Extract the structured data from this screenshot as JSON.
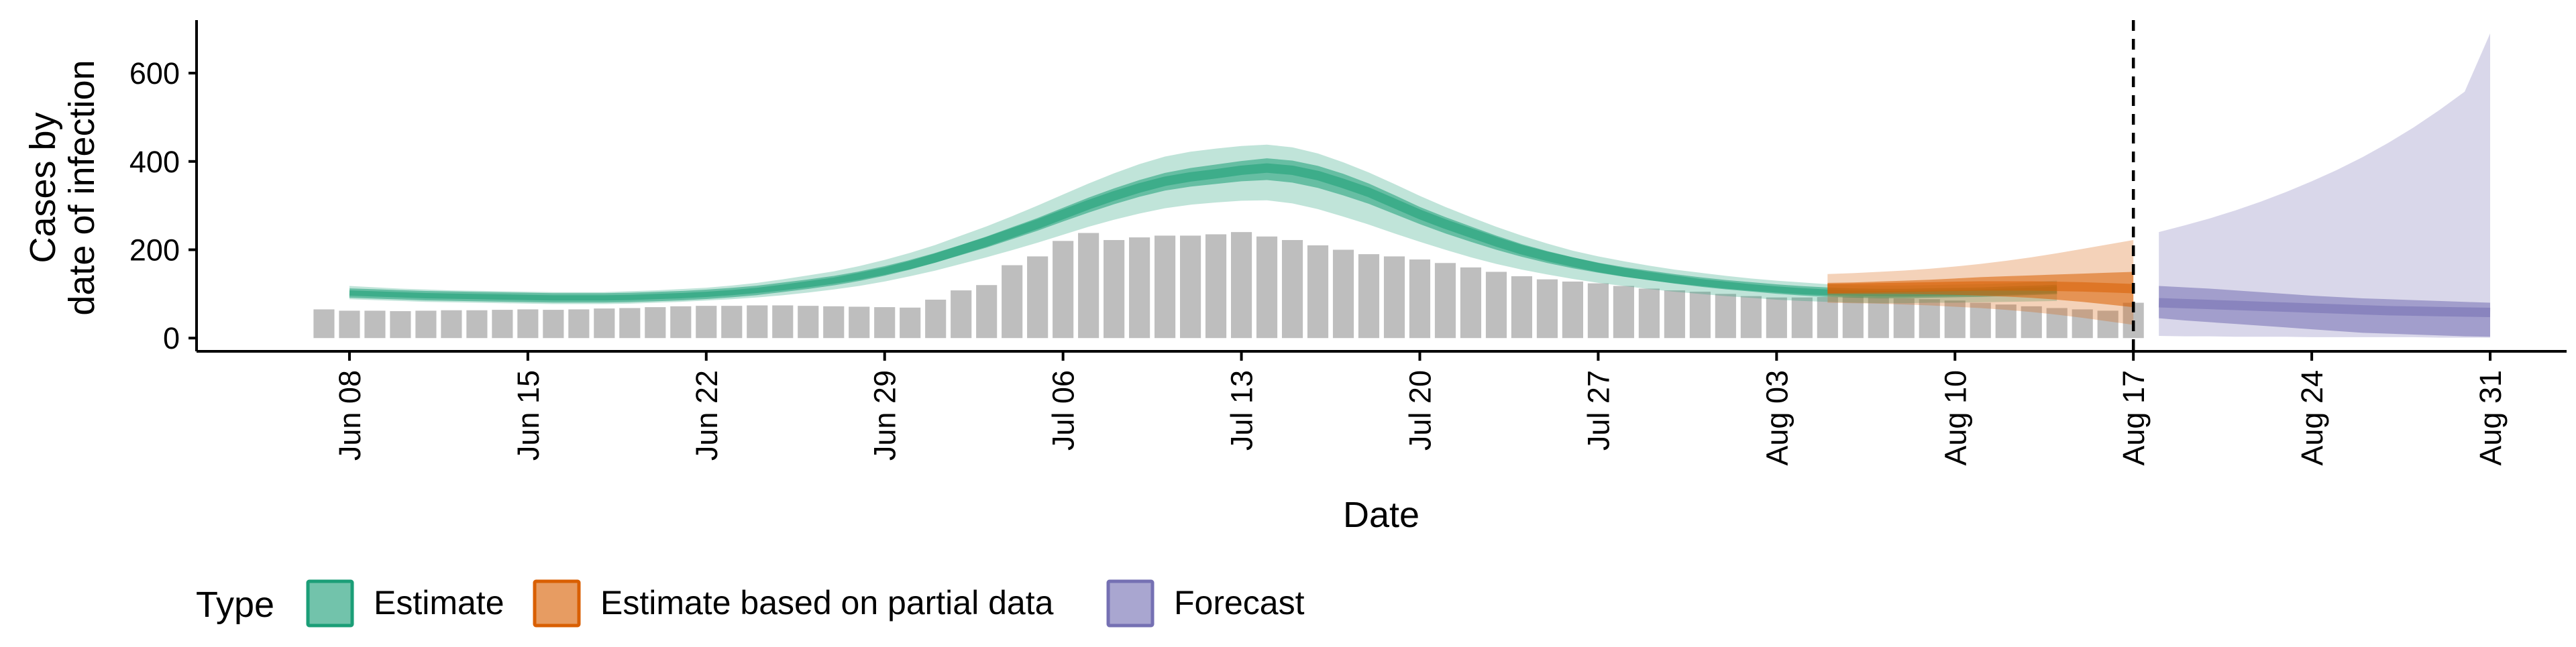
{
  "chart_data": {
    "type": "area",
    "xlabel": "Date",
    "ylabel_lines": [
      "Cases by",
      "date of infection"
    ],
    "ylim": [
      -30,
      720
    ],
    "y_ticks": [
      0,
      200,
      400,
      600
    ],
    "y_tick_labels": [
      "0",
      "200",
      "400",
      "600"
    ],
    "x_range": [
      "2020-06-02",
      "2020-09-03"
    ],
    "x_ticks": [
      "2020-06-08",
      "2020-06-15",
      "2020-06-22",
      "2020-06-29",
      "2020-07-06",
      "2020-07-13",
      "2020-07-20",
      "2020-07-27",
      "2020-08-03",
      "2020-08-10",
      "2020-08-17",
      "2020-08-24",
      "2020-08-31"
    ],
    "x_tick_labels": [
      "Jun 08",
      "Jun 15",
      "Jun 22",
      "Jun 29",
      "Jul 06",
      "Jul 13",
      "Jul 20",
      "Jul 27",
      "Aug 03",
      "Aug 10",
      "Aug 17",
      "Aug 24",
      "Aug 31"
    ],
    "vline_date": "2020-08-17",
    "grid": false,
    "legend": {
      "title": "Type",
      "position": "bottom-left",
      "items": [
        {
          "label": "Estimate",
          "color": "#1B9E77"
        },
        {
          "label": "Estimate based on partial data",
          "color": "#D95F02"
        },
        {
          "label": "Forecast",
          "color": "#7570B3"
        }
      ]
    },
    "bars": {
      "color": "#BEBEBE",
      "start_date": "2020-06-07",
      "values": [
        65,
        62,
        62,
        61,
        62,
        63,
        63,
        64,
        65,
        64,
        65,
        67,
        68,
        70,
        72,
        73,
        73,
        74,
        74,
        73,
        72,
        71,
        70,
        69,
        87,
        108,
        120,
        165,
        185,
        220,
        238,
        222,
        228,
        232,
        232,
        235,
        240,
        230,
        222,
        210,
        200,
        190,
        185,
        178,
        170,
        160,
        150,
        140,
        133,
        128,
        124,
        118,
        112,
        108,
        105,
        100,
        95,
        92,
        92,
        93,
        94,
        92,
        90,
        88,
        85,
        80,
        76,
        72,
        68,
        65,
        62,
        80
      ]
    },
    "series": [
      {
        "name": "Estimate",
        "color": "#1B9E77",
        "start_date": "2020-06-08",
        "median": [
          102,
          100,
          98,
          96,
          95,
          94,
          93,
          92,
          91,
          91,
          91,
          92,
          94,
          96,
          99,
          103,
          108,
          115,
          122,
          130,
          140,
          152,
          166,
          182,
          200,
          218,
          238,
          258,
          280,
          302,
          322,
          340,
          355,
          365,
          372,
          380,
          385,
          380,
          368,
          350,
          330,
          305,
          280,
          258,
          238,
          218,
          200,
          185,
          172,
          160,
          150,
          142,
          134,
          127,
          121,
          116,
          111,
          107,
          104,
          102,
          101,
          101,
          102,
          103,
          104,
          106,
          108,
          110
        ],
        "lower90": [
          88,
          86,
          84,
          82,
          81,
          80,
          79,
          78,
          77,
          77,
          77,
          78,
          80,
          82,
          85,
          88,
          92,
          97,
          103,
          110,
          118,
          128,
          140,
          153,
          168,
          183,
          199,
          216,
          234,
          252,
          268,
          282,
          294,
          302,
          307,
          311,
          312,
          305,
          292,
          275,
          257,
          237,
          218,
          200,
          183,
          168,
          155,
          144,
          134,
          125,
          118,
          111,
          105,
          100,
          95,
          91,
          87,
          84,
          82,
          80,
          79,
          79,
          80,
          80,
          81,
          82,
          83,
          84
        ],
        "upper90": [
          118,
          115,
          112,
          110,
          108,
          107,
          106,
          105,
          104,
          104,
          104,
          106,
          108,
          111,
          114,
          119,
          125,
          133,
          142,
          151,
          163,
          177,
          193,
          211,
          232,
          253,
          276,
          300,
          325,
          350,
          373,
          394,
          411,
          422,
          429,
          435,
          438,
          432,
          418,
          398,
          375,
          349,
          322,
          297,
          274,
          252,
          232,
          214,
          198,
          185,
          174,
          164,
          155,
          148,
          141,
          135,
          130,
          126,
          122,
          120,
          119,
          119,
          120,
          121,
          122,
          124,
          127,
          130
        ],
        "lower50": [
          96,
          94,
          92,
          90,
          89,
          88,
          87,
          86,
          85,
          85,
          85,
          86,
          88,
          90,
          93,
          97,
          102,
          108,
          115,
          123,
          132,
          143,
          156,
          171,
          188,
          205,
          224,
          243,
          264,
          284,
          303,
          320,
          334,
          343,
          349,
          355,
          358,
          352,
          340,
          323,
          304,
          281,
          258,
          237,
          218,
          200,
          184,
          170,
          158,
          148,
          139,
          131,
          124,
          118,
          112,
          107,
          103,
          99,
          97,
          95,
          94,
          94,
          95,
          96,
          97,
          98,
          100,
          102
        ],
        "upper50": [
          108,
          106,
          104,
          102,
          101,
          100,
          99,
          98,
          97,
          97,
          97,
          98,
          100,
          102,
          105,
          109,
          114,
          121,
          129,
          137,
          148,
          160,
          175,
          192,
          211,
          230,
          251,
          272,
          295,
          318,
          339,
          358,
          374,
          385,
          393,
          401,
          407,
          402,
          390,
          372,
          350,
          324,
          297,
          274,
          253,
          232,
          213,
          197,
          183,
          170,
          159,
          150,
          142,
          134,
          128,
          122,
          117,
          113,
          110,
          108,
          107,
          107,
          108,
          109,
          110,
          112,
          114,
          117
        ]
      },
      {
        "name": "Estimate based on partial data",
        "color": "#D95F02",
        "start_date": "2020-08-05",
        "median": [
          112,
          113,
          114,
          115,
          116,
          117,
          118,
          118,
          118,
          117,
          116,
          114,
          112
        ],
        "lower90": [
          80,
          79,
          78,
          76,
          74,
          71,
          68,
          64,
          59,
          53,
          46,
          38,
          30
        ],
        "upper90": [
          145,
          147,
          150,
          153,
          157,
          162,
          168,
          175,
          183,
          192,
          202,
          212,
          222
        ],
        "lower50": [
          100,
          100,
          100,
          100,
          99,
          98,
          96,
          94,
          91,
          87,
          82,
          76,
          70
        ],
        "upper50": [
          125,
          126,
          128,
          130,
          132,
          135,
          138,
          140,
          142,
          144,
          146,
          148,
          150
        ]
      },
      {
        "name": "Forecast",
        "color": "#7570B3",
        "start_date": "2020-08-18",
        "median": [
          80,
          78,
          76,
          74,
          72,
          70,
          68,
          66,
          64,
          62,
          61,
          60,
          59,
          58
        ],
        "lower90": [
          5,
          4,
          4,
          3,
          3,
          3,
          2,
          2,
          2,
          2,
          2,
          1,
          1,
          1
        ],
        "upper90": [
          240,
          255,
          271,
          289,
          309,
          331,
          355,
          381,
          410,
          442,
          477,
          516,
          558,
          690
        ],
        "lower50": [
          45,
          40,
          36,
          32,
          28,
          24,
          20,
          16,
          12,
          10,
          8,
          6,
          4,
          3
        ],
        "upper50": [
          118,
          115,
          112,
          108,
          104,
          100,
          96,
          93,
          90,
          88,
          86,
          84,
          82,
          80
        ]
      }
    ]
  }
}
